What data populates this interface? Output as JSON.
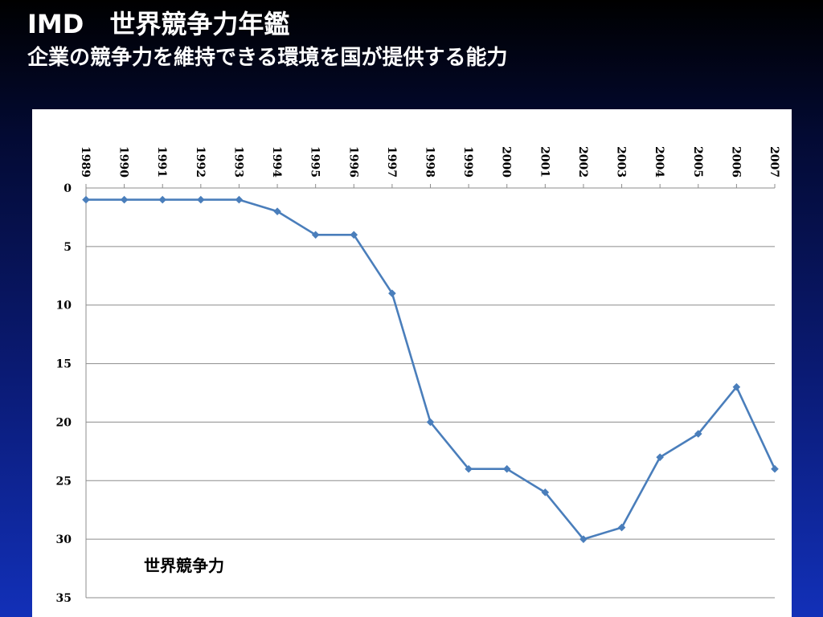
{
  "slide": {
    "title": "IMD　世界競争力年鑑",
    "subtitle": "企業の競争力を維持できる環境を国が提供する能力"
  },
  "chart_data": {
    "type": "line",
    "title": "",
    "xlabel": "",
    "ylabel": "",
    "x": [
      "1989",
      "1990",
      "1991",
      "1992",
      "1993",
      "1994",
      "1995",
      "1996",
      "1997",
      "1998",
      "1999",
      "2000",
      "2001",
      "2002",
      "2003",
      "2004",
      "2005",
      "2006",
      "2007"
    ],
    "series": [
      {
        "name": "世界競争力",
        "values": [
          1,
          1,
          1,
          1,
          1,
          2,
          4,
          4,
          9,
          20,
          24,
          24,
          26,
          30,
          29,
          23,
          21,
          17,
          24
        ],
        "color": "#4a7ebb",
        "marker": "diamond"
      }
    ],
    "ylim": [
      0,
      35
    ],
    "y_inverted": true,
    "y_ticks": [
      0,
      5,
      10,
      15,
      20,
      25,
      30,
      35
    ],
    "x_axis_position": "top",
    "x_tick_rotation": "vertical",
    "grid": true,
    "legend": "none",
    "series_label_position": "bottom-left"
  }
}
